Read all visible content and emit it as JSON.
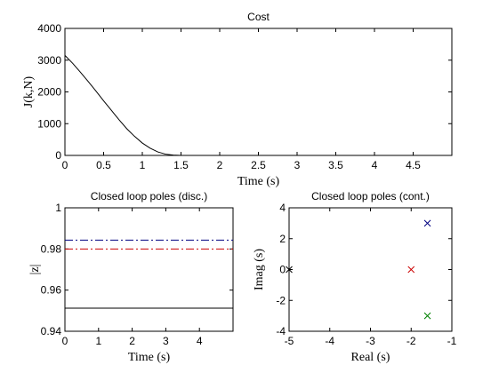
{
  "chart_data": [
    {
      "type": "line",
      "title": "Cost",
      "xlabel": "Time (s)",
      "ylabel": "J(k,N)",
      "xlim": [
        0,
        5
      ],
      "ylim": [
        0,
        4000
      ],
      "xticks": [
        0,
        0.5,
        1,
        1.5,
        2,
        2.5,
        3,
        3.5,
        4,
        4.5
      ],
      "xtick_labels": [
        "0",
        "0.5",
        "1",
        "1.5",
        "2",
        "2.5",
        "3",
        "3.5",
        "4",
        "4.5"
      ],
      "yticks": [
        0,
        1000,
        2000,
        3000,
        4000
      ],
      "ytick_labels": [
        "0",
        "1000",
        "2000",
        "3000",
        "4000"
      ],
      "series": [
        {
          "color": "#000000",
          "x": [
            0,
            0.1,
            0.2,
            0.3,
            0.4,
            0.5,
            0.6,
            0.7,
            0.8,
            0.9,
            1.0,
            1.1,
            1.2,
            1.3,
            1.4,
            1.5,
            2,
            2.5,
            3,
            3.5,
            4,
            4.5,
            5
          ],
          "y": [
            3150,
            2900,
            2620,
            2330,
            2030,
            1720,
            1420,
            1120,
            840,
            600,
            390,
            230,
            110,
            40,
            10,
            0,
            0,
            0,
            0,
            0,
            0,
            0,
            0
          ]
        }
      ]
    },
    {
      "type": "line",
      "title": "Closed loop poles (disc.)",
      "xlabel": "Time (s)",
      "ylabel": "|z|",
      "xlim": [
        0,
        5
      ],
      "ylim": [
        0.94,
        1.0
      ],
      "xticks": [
        0,
        1,
        2,
        3,
        4
      ],
      "xtick_labels": [
        "0",
        "1",
        "2",
        "3",
        "4"
      ],
      "yticks": [
        0.94,
        0.96,
        0.98,
        1.0
      ],
      "ytick_labels": [
        "0.94",
        "0.96",
        "0.98",
        "1"
      ],
      "series": [
        {
          "color": "#000080",
          "style": "dashdot",
          "x": [
            0,
            5
          ],
          "y": [
            0.9843,
            0.9843
          ]
        },
        {
          "color": "#cc0000",
          "style": "dashdot",
          "x": [
            0,
            5
          ],
          "y": [
            0.98,
            0.98
          ]
        },
        {
          "color": "#000000",
          "style": "solid",
          "x": [
            0,
            5
          ],
          "y": [
            0.9512,
            0.9512
          ]
        }
      ]
    },
    {
      "type": "scatter",
      "title": "Closed loop poles (cont.)",
      "xlabel": "Real (s)",
      "ylabel": "Imag (s)",
      "xlim": [
        -5,
        -1
      ],
      "ylim": [
        -4,
        4
      ],
      "xticks": [
        -5,
        -4,
        -3,
        -2,
        -1
      ],
      "xtick_labels": [
        "-5",
        "-4",
        "-3",
        "-2",
        "-1"
      ],
      "yticks": [
        -4,
        -2,
        0,
        2,
        4
      ],
      "ytick_labels": [
        "-4",
        "-2",
        "0",
        "2",
        "4"
      ],
      "points": [
        {
          "x": -1.6,
          "y": 3,
          "color": "#000080",
          "marker": "x"
        },
        {
          "x": -2.0,
          "y": 0,
          "color": "#cc0000",
          "marker": "x"
        },
        {
          "x": -1.6,
          "y": -3,
          "color": "#008000",
          "marker": "x"
        },
        {
          "x": -5.0,
          "y": 0,
          "color": "#000000",
          "marker": "x"
        }
      ]
    }
  ]
}
